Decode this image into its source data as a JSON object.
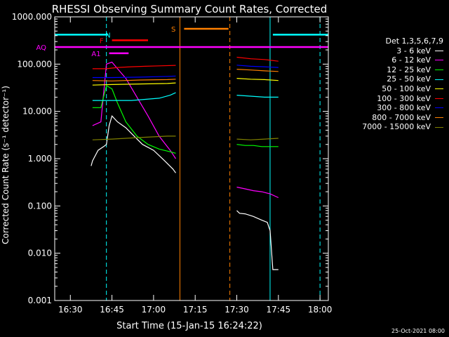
{
  "chart_data": {
    "type": "line",
    "title": "RHESSI Observing Summary Count Rates, Corrected",
    "xlabel": "Start Time (15-Jan-15 16:24:22)",
    "ylabel": "Corrected Count Rate (s⁻¹ detector⁻¹)",
    "y_scale": "log",
    "xlim": [
      "16:24:22",
      "18:03:00"
    ],
    "ylim": [
      0.001,
      1000.0
    ],
    "x_ticks": [
      "16:30",
      "16:45",
      "17:00",
      "17:15",
      "17:30",
      "17:45",
      "18:00"
    ],
    "y_ticks": [
      "0.001",
      "0.010",
      "0.100",
      "1.000",
      "10.000",
      "100.000",
      "1000.000"
    ],
    "legend_title": "Det 1,3,5,6,7,9",
    "legend_position": "right",
    "series": [
      {
        "name": "3 - 6 keV",
        "color": "#ffffff",
        "segments": [
          {
            "x": [
              "16:37:30",
              "16:38",
              "16:40",
              "16:42",
              "16:43",
              "16:44",
              "16:45",
              "16:47",
              "16:50",
              "16:53",
              "16:56",
              "17:00",
              "17:04",
              "17:07",
              "17:08"
            ],
            "y": [
              0.7,
              0.9,
              1.5,
              1.8,
              2.0,
              5.0,
              8.0,
              6.0,
              4.5,
              3.0,
              2.0,
              1.5,
              0.9,
              0.6,
              0.5
            ]
          },
          {
            "x": [
              "17:30",
              "17:31",
              "17:33",
              "17:36",
              "17:39",
              "17:41",
              "17:42",
              "17:43",
              "17:44",
              "17:45"
            ],
            "y": [
              0.08,
              0.07,
              0.068,
              0.06,
              0.05,
              0.045,
              0.03,
              0.0045,
              0.0045,
              0.0045
            ]
          }
        ]
      },
      {
        "name": "6 - 12 keV",
        "color": "#ff00ff",
        "segments": [
          {
            "x": [
              "16:38",
              "16:41",
              "16:43",
              "16:45",
              "16:47",
              "16:50",
              "16:54",
              "16:58",
              "17:02",
              "17:06",
              "17:08"
            ],
            "y": [
              5,
              6,
              100,
              110,
              80,
              50,
              20,
              8,
              3,
              1.5,
              1.0
            ]
          },
          {
            "x": [
              "17:30",
              "17:33",
              "17:36",
              "17:39",
              "17:42",
              "17:45"
            ],
            "y": [
              0.25,
              0.23,
              0.21,
              0.2,
              0.18,
              0.15
            ]
          }
        ]
      },
      {
        "name": "12 - 25 keV",
        "color": "#00ff00",
        "segments": [
          {
            "x": [
              "16:38",
              "16:41",
              "16:43",
              "16:45",
              "16:47",
              "16:50",
              "16:54",
              "16:58",
              "17:02",
              "17:06",
              "17:08"
            ],
            "y": [
              12,
              12,
              35,
              30,
              15,
              6,
              3,
              2,
              1.6,
              1.4,
              1.3
            ]
          },
          {
            "x": [
              "17:30",
              "17:33",
              "17:36",
              "17:39",
              "17:42",
              "17:45"
            ],
            "y": [
              2,
              1.9,
              1.9,
              1.8,
              1.8,
              1.8
            ]
          }
        ]
      },
      {
        "name": "25 - 50 keV",
        "color": "#00ffff",
        "segments": [
          {
            "x": [
              "16:38",
              "16:43",
              "16:47",
              "16:52",
              "16:57",
              "17:02",
              "17:06",
              "17:08"
            ],
            "y": [
              17,
              17,
              17,
              17,
              18,
              19,
              22,
              25
            ]
          },
          {
            "x": [
              "17:30",
              "17:35",
              "17:40",
              "17:45"
            ],
            "y": [
              22,
              21,
              20,
              20
            ]
          }
        ]
      },
      {
        "name": "50 - 100 keV",
        "color": "#ffff00",
        "segments": [
          {
            "x": [
              "16:38",
              "16:45",
              "16:55",
              "17:05",
              "17:08"
            ],
            "y": [
              36,
              37,
              38,
              39,
              40
            ]
          },
          {
            "x": [
              "17:30",
              "17:35",
              "17:40",
              "17:45"
            ],
            "y": [
              50,
              48,
              47,
              45
            ]
          }
        ]
      },
      {
        "name": "100 - 300 keV",
        "color": "#ff0000",
        "segments": [
          {
            "x": [
              "16:38",
              "16:43",
              "16:47",
              "16:52",
              "16:57",
              "17:02",
              "17:08"
            ],
            "y": [
              80,
              80,
              85,
              88,
              90,
              92,
              94
            ]
          },
          {
            "x": [
              "17:30",
              "17:35",
              "17:40",
              "17:45"
            ],
            "y": [
              140,
              130,
              125,
              115
            ]
          }
        ]
      },
      {
        "name": "300 - 800 keV",
        "color": "#0000ff",
        "segments": [
          {
            "x": [
              "16:38",
              "16:45",
              "16:55",
              "17:05",
              "17:08"
            ],
            "y": [
              52,
              52,
              53,
              55,
              56
            ]
          },
          {
            "x": [
              "17:30",
              "17:35",
              "17:40",
              "17:45"
            ],
            "y": [
              95,
              90,
              88,
              85
            ]
          }
        ]
      },
      {
        "name": "800 - 7000 keV",
        "color": "#ff8000",
        "segments": [
          {
            "x": [
              "16:38",
              "16:45",
              "16:55",
              "17:05",
              "17:08"
            ],
            "y": [
              45,
              44,
              46,
              47,
              48
            ]
          },
          {
            "x": [
              "17:30",
              "17:35",
              "17:40",
              "17:45"
            ],
            "y": [
              78,
              75,
              72,
              70
            ]
          }
        ]
      },
      {
        "name": "7000 - 15000 keV",
        "color": "#808000",
        "segments": [
          {
            "x": [
              "16:38",
              "16:45",
              "16:55",
              "17:05",
              "17:08"
            ],
            "y": [
              2.5,
              2.6,
              2.8,
              3.0,
              3.0
            ]
          },
          {
            "x": [
              "17:30",
              "17:35",
              "17:40",
              "17:45"
            ],
            "y": [
              2.6,
              2.5,
              2.6,
              2.7
            ]
          }
        ]
      }
    ],
    "flag_bars": [
      {
        "label": "N",
        "color": "#00ffff",
        "level": 420,
        "spans": [
          [
            "16:24:22",
            "16:43:40"
          ],
          [
            "17:43",
            "18:03"
          ]
        ]
      },
      {
        "label": "F",
        "color": "#ff0000",
        "level": 320,
        "spans": [
          [
            "16:45",
            "16:58"
          ]
        ]
      },
      {
        "label": "S",
        "color": "#ff8000",
        "level": 560,
        "spans": [
          [
            "17:11",
            "17:27"
          ]
        ]
      },
      {
        "label": "AQ",
        "color": "#ff00ff",
        "level": 230,
        "spans": [
          [
            "16:24:22",
            "18:03"
          ]
        ]
      },
      {
        "label": "A1",
        "color": "#ff00ff",
        "level": 170,
        "spans": [
          [
            "16:44",
            "16:51"
          ]
        ]
      }
    ],
    "vertical_markers": [
      {
        "x": "16:24:22",
        "color": "#00ffff",
        "style": "dashed"
      },
      {
        "x": "16:43:00",
        "color": "#00ffff",
        "style": "dashed"
      },
      {
        "x": "17:09:30",
        "color": "#ff8000",
        "style": "solid"
      },
      {
        "x": "17:27:30",
        "color": "#ff8000",
        "style": "dashed"
      },
      {
        "x": "17:42:00",
        "color": "#00ffff",
        "style": "solid"
      },
      {
        "x": "18:00:00",
        "color": "#00ffff",
        "style": "dashed"
      }
    ]
  },
  "footer_date": "25-Oct-2021 08:00"
}
